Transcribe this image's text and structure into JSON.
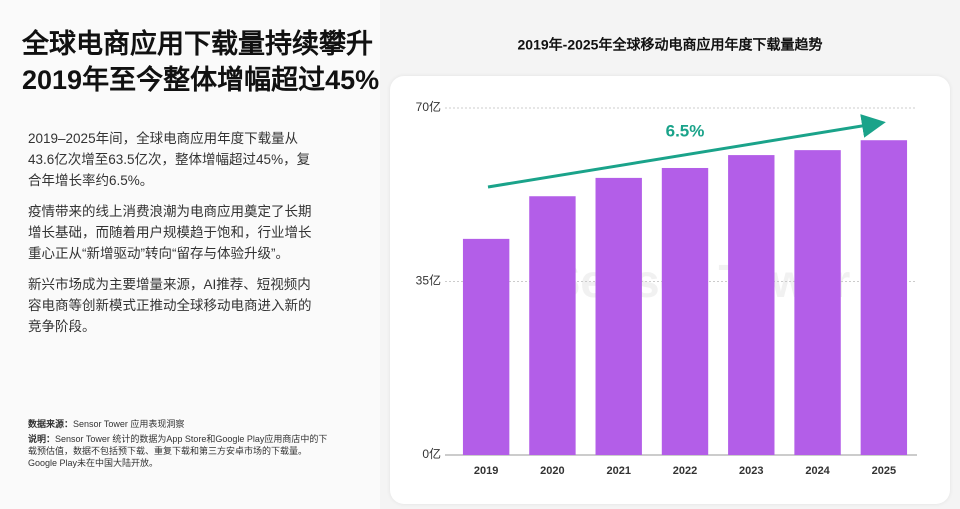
{
  "headline": [
    "全球电商应用下载量持续攀升",
    "2019年至今整体增幅超过45%"
  ],
  "paragraphs": [
    "2019–2025年间，全球电商应用年度下载量从43.6亿次增至63.5亿次，整体增幅超过45%，复合年增长率约6.5%。",
    "疫情带来的线上消费浪潮为电商应用奠定了长期增长基础，而随着用户规模趋于饱和，行业增长重心正从“新增驱动”转向“留存与体验升级”。",
    "新兴市场成为主要增量来源，AI推荐、短视频内容电商等创新模式正推动全球移动电商进入新的竞争阶段。"
  ],
  "notes": [
    {
      "label": "数据来源：",
      "text": "Sensor Tower 应用表现洞察"
    },
    {
      "label": "说明：",
      "text": "Sensor Tower 统计的数据为App Store和Google Play应用商店中的下载预估值，数据不包括预下载、重复下载和第三方安卓市场的下载量。Google Play未在中国大陆开放。"
    }
  ],
  "chart_data": {
    "type": "bar",
    "title": "2019年-2025年全球移动电商应用年度下载量趋势",
    "categories": [
      "2019",
      "2020",
      "2021",
      "2022",
      "2023",
      "2024",
      "2025"
    ],
    "values": [
      43.6,
      52.2,
      55.9,
      57.9,
      60.5,
      61.5,
      63.5
    ],
    "color": "#b35ee8",
    "ylim": [
      0,
      70
    ],
    "yticks": [
      {
        "value": 0,
        "label": "0亿"
      },
      {
        "value": 35,
        "label": "35亿"
      },
      {
        "value": 70,
        "label": "70亿"
      }
    ],
    "grid": true,
    "annotation": "6.5%",
    "annotation_color": "#1aa38a",
    "watermark": "Sensor Tower"
  }
}
